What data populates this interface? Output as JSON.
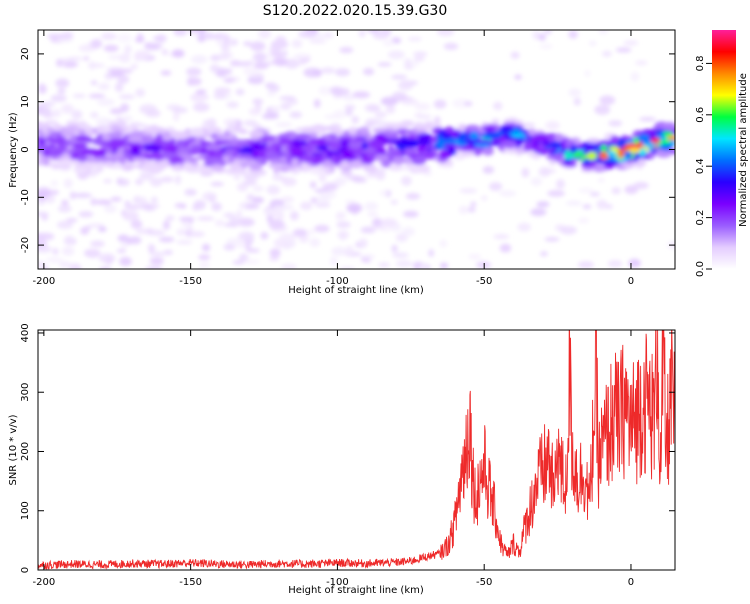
{
  "figure_title": "S120.2022.020.15.39.G30",
  "colors": {
    "line": "#ee2a2a",
    "frame": "#000000",
    "colormap_stops": [
      "#ffffff",
      "#e4ccff",
      "#9a5cff",
      "#7a00ff",
      "#2a00ff",
      "#0070ff",
      "#00e6ff",
      "#00ff40",
      "#ffff00",
      "#ff8800",
      "#ff0000",
      "#ff1f9a"
    ]
  },
  "chart_data": [
    {
      "type": "heatmap",
      "title": "",
      "xlabel": "Height of straight line (km)",
      "ylabel": "Frequency (Hz)",
      "xlim": [
        -202,
        15
      ],
      "ylim": [
        -25,
        25
      ],
      "x_ticks": [
        -200,
        -150,
        -100,
        -50,
        0
      ],
      "y_ticks": [
        -20,
        -10,
        0,
        10,
        20
      ],
      "grid": false,
      "colorbar": {
        "label": "Normalized spectral amplitude",
        "range": [
          0,
          0.93
        ],
        "ticks": [
          "0.0",
          "0.2",
          "0.4",
          "0.6",
          "0.8"
        ]
      },
      "ridge": {
        "description_points_x": [
          -200,
          -150,
          -100,
          -70,
          -60,
          -50,
          -45,
          -40,
          -35,
          -30,
          -25,
          -20,
          -10,
          0,
          10,
          15
        ],
        "center_frequency_hz": [
          1,
          0,
          0,
          1,
          2,
          2,
          3,
          3,
          2,
          1,
          0,
          -1,
          -1,
          0,
          2,
          2
        ],
        "peak_amplitude": [
          0.25,
          0.28,
          0.3,
          0.35,
          0.5,
          0.55,
          0.5,
          0.55,
          0.45,
          0.4,
          0.45,
          0.6,
          0.75,
          0.9,
          0.85,
          0.7
        ]
      }
    },
    {
      "type": "line",
      "title": "",
      "xlabel": "Height of straight line (km)",
      "ylabel": "SNR (10 * v/v)",
      "xlim": [
        -202,
        15
      ],
      "ylim": [
        0,
        405
      ],
      "x_ticks": [
        -200,
        -150,
        -100,
        -50,
        0
      ],
      "y_ticks": [
        0,
        100,
        200,
        300,
        400
      ],
      "grid": false,
      "series": [
        {
          "color": "#ee2a2a",
          "x": [
            -202,
            -190,
            -180,
            -170,
            -160,
            -150,
            -140,
            -130,
            -120,
            -110,
            -100,
            -90,
            -80,
            -75,
            -70,
            -65,
            -62,
            -60,
            -58,
            -56,
            -55,
            -54,
            -53,
            -52,
            -50,
            -48,
            -46,
            -45,
            -44,
            -42,
            -40,
            -38,
            -36,
            -34,
            -32,
            -30,
            -28,
            -26,
            -25,
            -24,
            -22,
            -21,
            -20,
            -18,
            -16,
            -14,
            -12,
            -11,
            -10,
            -8,
            -6,
            -4,
            -2,
            0,
            2,
            4,
            6,
            8,
            9,
            10,
            11,
            12,
            13,
            14,
            15
          ],
          "y": [
            8,
            10,
            9,
            11,
            10,
            12,
            10,
            9,
            11,
            10,
            12,
            11,
            13,
            15,
            22,
            28,
            45,
            80,
            150,
            210,
            265,
            170,
            120,
            140,
            175,
            130,
            90,
            60,
            40,
            25,
            45,
            30,
            75,
            110,
            150,
            165,
            190,
            120,
            230,
            165,
            140,
            335,
            200,
            150,
            170,
            110,
            330,
            180,
            200,
            230,
            260,
            250,
            280,
            240,
            260,
            290,
            280,
            250,
            405,
            160,
            350,
            200,
            260,
            310,
            240
          ]
        }
      ]
    }
  ]
}
